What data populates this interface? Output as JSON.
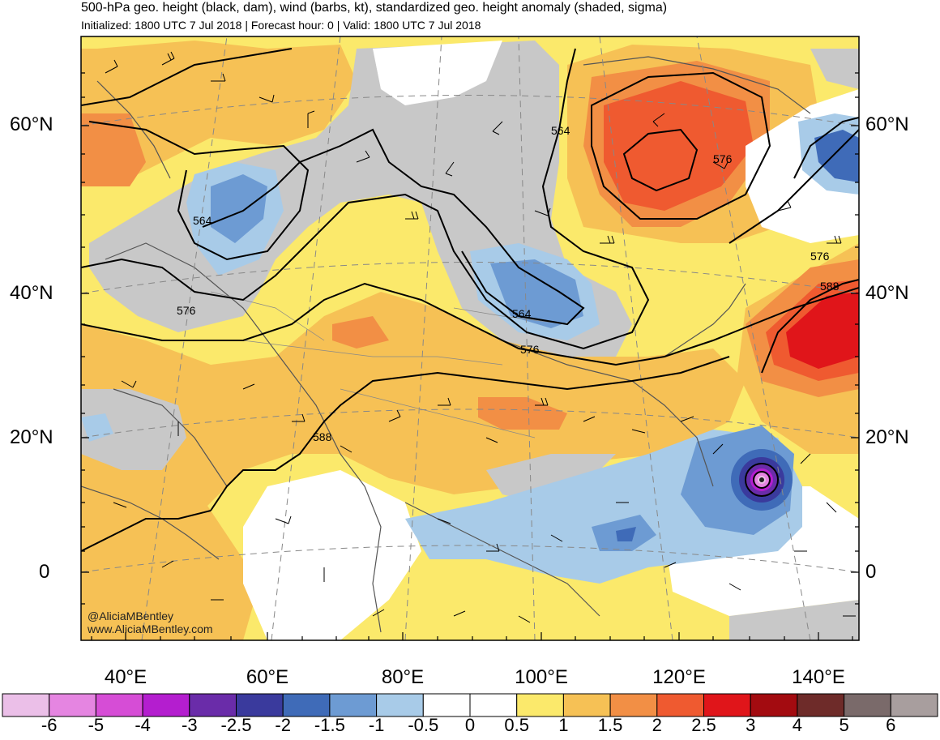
{
  "header": {
    "title": "500-hPa geo. height (black, dam), wind (barbs, kt), standardized geo. height anomaly (shaded, sigma)",
    "subtitle": "Initialized: 1800 UTC 7 Jul 2018 | Forecast hour: 0 | Valid: 1800 UTC 7 Jul 2018"
  },
  "axes": {
    "lat_labels": [
      "60°N",
      "40°N",
      "20°N",
      "0"
    ],
    "lon_labels": [
      "40°E",
      "60°E",
      "80°E",
      "100°E",
      "120°E",
      "140°E"
    ]
  },
  "contour_labels": [
    "564",
    "576",
    "564",
    "564",
    "576",
    "576",
    "588",
    "576",
    "588"
  ],
  "credits": {
    "handle": "@AliciaMBentley",
    "site": "www.AliciaMBentley.com"
  },
  "colorbar": {
    "labels": [
      "-6",
      "-5",
      "-4",
      "-3",
      "-2.5",
      "-2",
      "-1.5",
      "-1",
      "-0.5",
      "0",
      "0.5",
      "1",
      "1.5",
      "2",
      "2.5",
      "3",
      "4",
      "5",
      "6"
    ],
    "colors": [
      "#ebbfe8",
      "#e585e1",
      "#d64dd6",
      "#b41ecf",
      "#6a2ca9",
      "#3a3a9d",
      "#3f6bb8",
      "#6d9bd3",
      "#a8cbe8",
      "#ffffff",
      "#ffffff",
      "#fbe96b",
      "#f6c155",
      "#f28f45",
      "#ef5a30",
      "#e0151a",
      "#a30b10",
      "#6e2b29",
      "#7a6a6a",
      "#a89e9e"
    ]
  }
}
